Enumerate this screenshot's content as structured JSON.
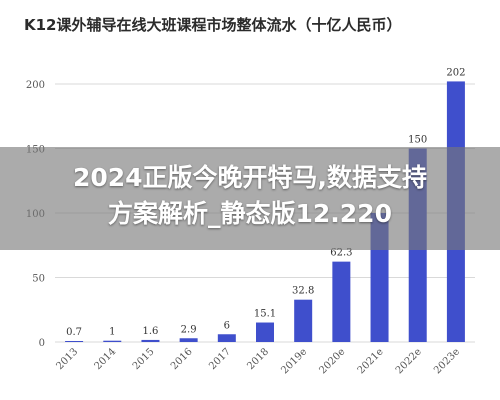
{
  "chart_data": {
    "type": "bar",
    "title": "K12课外辅导在线大班课程市场整体流水（十亿人民币）",
    "categories": [
      "2013",
      "2014",
      "2015",
      "2016",
      "2017",
      "2018",
      "2019e",
      "2020e",
      "2021e",
      "2022e",
      "2023e"
    ],
    "values": [
      0.7,
      1,
      1.6,
      2.9,
      6,
      15.1,
      32.8,
      62.3,
      100,
      150,
      202
    ],
    "data_labels": [
      "0.7",
      "1",
      "1.6",
      "2.9",
      "6",
      "15.1",
      "32.8",
      "62.3",
      "",
      "150",
      "202"
    ],
    "yticks": [
      "0",
      "50",
      "100",
      "150",
      "200"
    ],
    "ylim": [
      0,
      200
    ],
    "xlabel": "",
    "ylabel": "",
    "grid": true,
    "legend": "none",
    "bar_color": "#3f4fcc",
    "grid_color": "#d9d9d9"
  },
  "overlay": {
    "line1": "2024正版今晚开特马,数据支持",
    "line2": "方案解析_静态版12.220",
    "background": "#787878",
    "text_color": "#ffffff"
  }
}
